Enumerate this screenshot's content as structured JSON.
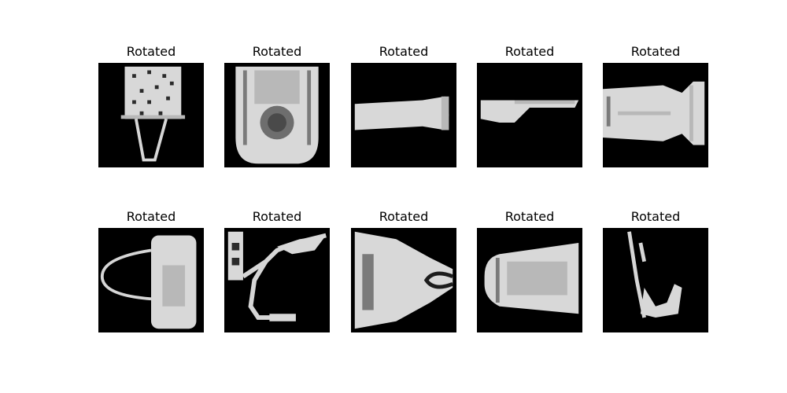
{
  "figure": {
    "panels": [
      {
        "title": "Rotated",
        "icon": "bag-icon"
      },
      {
        "title": "Rotated",
        "icon": "sandal-icon"
      },
      {
        "title": "Rotated",
        "icon": "trouser-icon"
      },
      {
        "title": "Rotated",
        "icon": "sneaker-icon"
      },
      {
        "title": "Rotated",
        "icon": "bag-icon"
      },
      {
        "title": "Rotated",
        "icon": "bag-icon"
      },
      {
        "title": "Rotated",
        "icon": "sandal-icon"
      },
      {
        "title": "Rotated",
        "icon": "bag-icon"
      },
      {
        "title": "Rotated",
        "icon": "shirt-icon"
      },
      {
        "title": "Rotated",
        "icon": "sandal-icon"
      }
    ]
  }
}
